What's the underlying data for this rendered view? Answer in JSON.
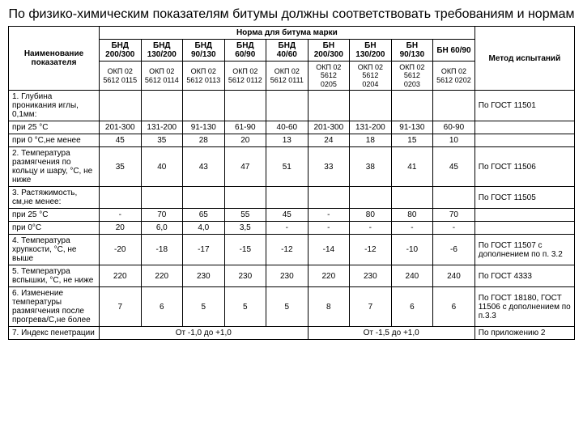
{
  "title": "По физико-химическим показателям битумы должны соответствовать требованиям и нормам",
  "headers": {
    "name": "Наименование показателя",
    "norm": "Норма для битума марки",
    "method": "Метод испытаний",
    "brands": [
      "БНД 200/300",
      "БНД 130/200",
      "БНД 90/130",
      "БНД 60/90",
      "БНД 40/60",
      "БН 200/300",
      "БН 130/200",
      "БН 90/130",
      "БН 60/90"
    ],
    "okp": [
      "ОКП 02 5612 0115",
      "ОКП 02 5612 0114",
      "ОКП 02 5612 0113",
      "ОКП 02 5612 0112",
      "ОКП 02 5612 0111",
      "ОКП 02 5612 0205",
      "ОКП 02 5612 0204",
      "ОКП 02 5612 0203",
      "ОКП 02 5612 0202"
    ]
  },
  "rows": [
    {
      "label": "1. Глубина проникания иглы, 0,1мм:",
      "vals": [
        "",
        "",
        "",
        "",
        "",
        "",
        "",
        "",
        ""
      ],
      "method": "По ГОСТ 11501"
    },
    {
      "label": "при 25 °С",
      "vals": [
        "201-300",
        "131-200",
        "91-130",
        "61-90",
        "40-60",
        "201-300",
        "131-200",
        "91-130",
        "60-90"
      ],
      "method": ""
    },
    {
      "label": "при 0 °С,не менее",
      "vals": [
        "45",
        "35",
        "28",
        "20",
        "13",
        "24",
        "18",
        "15",
        "10"
      ],
      "method": ""
    },
    {
      "label": "2. Температура размягчения по кольцу и шару, °С, не ниже",
      "vals": [
        "35",
        "40",
        "43",
        "47",
        "51",
        "33",
        "38",
        "41",
        "45"
      ],
      "method": "По ГОСТ 11506"
    },
    {
      "label": "3. Растяжимость, см,не менее:",
      "vals": [
        "",
        "",
        "",
        "",
        "",
        "",
        "",
        "",
        ""
      ],
      "method": "По ГОСТ 11505"
    },
    {
      "label": "при 25 °С",
      "vals": [
        "-",
        "70",
        "65",
        "55",
        "45",
        "-",
        "80",
        "80",
        "70"
      ],
      "method": ""
    },
    {
      "label": "при 0°С",
      "vals": [
        "20",
        "6,0",
        "4,0",
        "3,5",
        "-",
        "-",
        "-",
        "-",
        "-"
      ],
      "method": ""
    },
    {
      "label": "4. Температура хрупкости, °С, не выше",
      "vals": [
        "-20",
        "-18",
        "-17",
        "-15",
        "-12",
        "-14",
        "-12",
        "-10",
        "-6"
      ],
      "method": "По ГОСТ 11507 с дополнением по п. 3.2"
    },
    {
      "label": "5. Температура вспышки, °С, не ниже",
      "vals": [
        "220",
        "220",
        "230",
        "230",
        "230",
        "220",
        "230",
        "240",
        "240"
      ],
      "method": "По ГОСТ 4333"
    },
    {
      "label": "6. Изменение температуры размягчения после прогрева/С,не более",
      "vals": [
        "7",
        "6",
        "5",
        "5",
        "5",
        "8",
        "7",
        "6",
        "6"
      ],
      "method": "По ГОСТ 18180, ГОСТ 11506 с дополнением по п.3.3"
    }
  ],
  "row7": {
    "label": "7. Индекс пенетрации",
    "span1": "От -1,0 до +1,0",
    "span2": "От -1,5 до +1,0",
    "method": "По приложению 2"
  },
  "style": {
    "border_color": "#000000",
    "background": "#ffffff",
    "title_fontsize": 16,
    "table_fontsize": 10
  }
}
